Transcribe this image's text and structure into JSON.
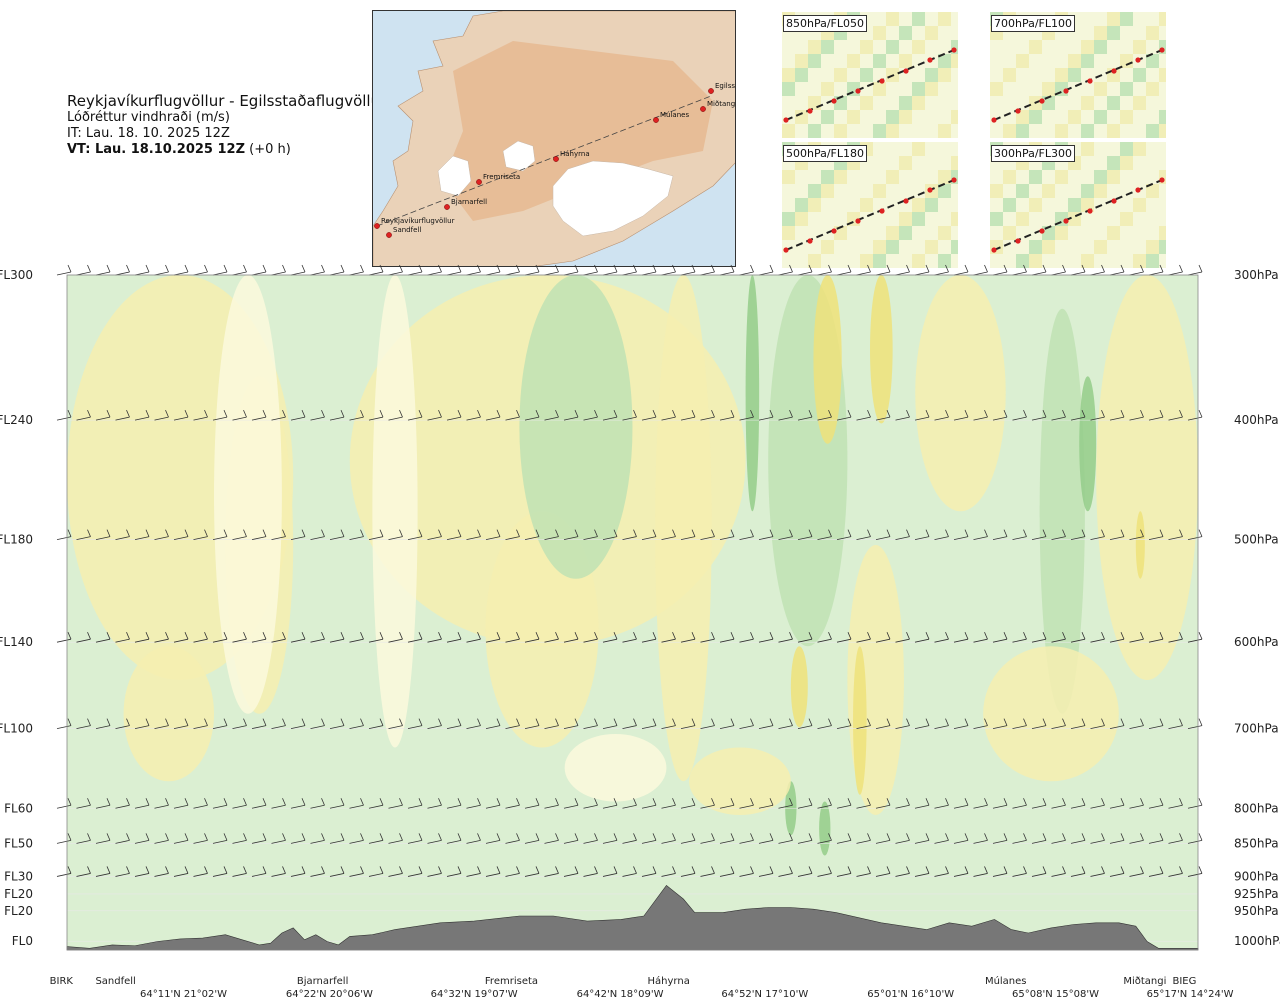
{
  "header": {
    "title": "Reykjavíkurflugvöllur - Egilsstaðaflugvöllur",
    "subtitle": "Lóðréttur vindhraði (m/s)",
    "issue_time": "IT: Lau. 18. 10. 2025 12Z",
    "valid_prefix": "VT: Lau. 18.10.2025 12Z",
    "valid_suffix": "(+0 h)"
  },
  "route_map": {
    "waypoints": [
      "Reykjavíkurflugvöllur",
      "Sandfell",
      "Bjarnarfell",
      "Fremriseta",
      "Háhyrna",
      "Múlanes",
      "Egilsst",
      "Miðtangi"
    ]
  },
  "insets": [
    {
      "label": "850hPa/FL050"
    },
    {
      "label": "700hPa/FL100"
    },
    {
      "label": "500hPa/FL180"
    },
    {
      "label": "300hPa/FL300"
    }
  ],
  "chart_data": {
    "type": "heatmap",
    "title": "Lóðréttur vindhraði (m/s)",
    "x_range": [
      0,
      1
    ],
    "levels": [
      {
        "fl": "FL300",
        "hpa": "300hPa",
        "pos": 0.0
      },
      {
        "fl": "FL240",
        "hpa": "400hPa",
        "pos": 0.215
      },
      {
        "fl": "FL180",
        "hpa": "500hPa",
        "pos": 0.392
      },
      {
        "fl": "FL140",
        "hpa": "600hPa",
        "pos": 0.544
      },
      {
        "fl": "FL100",
        "hpa": "700hPa",
        "pos": 0.672
      },
      {
        "fl": "FL60",
        "hpa": "800hPa",
        "pos": 0.79
      },
      {
        "fl": "FL50",
        "hpa": "850hPa",
        "pos": 0.842
      },
      {
        "fl": "FL30",
        "hpa": "900hPa",
        "pos": 0.891
      },
      {
        "fl": "FL20",
        "hpa": "925hPa",
        "pos": 0.917
      },
      {
        "fl": "FL20",
        "hpa": "950hPa",
        "pos": 0.942
      },
      {
        "fl": "FL0",
        "hpa": "1000hPa",
        "pos": 0.987
      }
    ],
    "places": [
      {
        "name": "BIRK",
        "pos": -0.005
      },
      {
        "name": "Sandfell",
        "pos": 0.043
      },
      {
        "name": "Bjarnarfell",
        "pos": 0.226
      },
      {
        "name": "Fremriseta",
        "pos": 0.393
      },
      {
        "name": "Háhyrna",
        "pos": 0.532
      },
      {
        "name": "Múlanes",
        "pos": 0.83
      },
      {
        "name": "Miðtangi",
        "pos": 0.953
      },
      {
        "name": "BIEG",
        "pos": 0.988
      }
    ],
    "coords": [
      {
        "label": "64°11'N 21°02'W",
        "pos": 0.103
      },
      {
        "label": "64°22'N 20°06'W",
        "pos": 0.232
      },
      {
        "label": "64°32'N 19°07'W",
        "pos": 0.36
      },
      {
        "label": "64°42'N 18°09'W",
        "pos": 0.489
      },
      {
        "label": "64°52'N 17°10'W",
        "pos": 0.617
      },
      {
        "label": "65°01'N 16°10'W",
        "pos": 0.746
      },
      {
        "label": "65°08'N 15°08'W",
        "pos": 0.874
      },
      {
        "label": "65°17'N 14°24'W",
        "pos": 0.993
      }
    ],
    "terrain": [
      [
        0,
        0.02
      ],
      [
        0.02,
        0.01
      ],
      [
        0.04,
        0.03
      ],
      [
        0.06,
        0.025
      ],
      [
        0.08,
        0.05
      ],
      [
        0.1,
        0.065
      ],
      [
        0.12,
        0.07
      ],
      [
        0.14,
        0.09
      ],
      [
        0.155,
        0.06
      ],
      [
        0.17,
        0.03
      ],
      [
        0.18,
        0.04
      ],
      [
        0.19,
        0.1
      ],
      [
        0.2,
        0.13
      ],
      [
        0.21,
        0.06
      ],
      [
        0.22,
        0.09
      ],
      [
        0.23,
        0.05
      ],
      [
        0.24,
        0.03
      ],
      [
        0.25,
        0.08
      ],
      [
        0.27,
        0.09
      ],
      [
        0.29,
        0.12
      ],
      [
        0.31,
        0.14
      ],
      [
        0.33,
        0.16
      ],
      [
        0.36,
        0.17
      ],
      [
        0.4,
        0.2
      ],
      [
        0.43,
        0.2
      ],
      [
        0.46,
        0.17
      ],
      [
        0.49,
        0.18
      ],
      [
        0.51,
        0.2
      ],
      [
        0.53,
        0.38
      ],
      [
        0.545,
        0.3
      ],
      [
        0.555,
        0.22
      ],
      [
        0.58,
        0.22
      ],
      [
        0.6,
        0.24
      ],
      [
        0.62,
        0.25
      ],
      [
        0.64,
        0.25
      ],
      [
        0.66,
        0.24
      ],
      [
        0.68,
        0.22
      ],
      [
        0.7,
        0.19
      ],
      [
        0.72,
        0.16
      ],
      [
        0.74,
        0.14
      ],
      [
        0.76,
        0.12
      ],
      [
        0.78,
        0.16
      ],
      [
        0.8,
        0.14
      ],
      [
        0.82,
        0.18
      ],
      [
        0.835,
        0.12
      ],
      [
        0.85,
        0.1
      ],
      [
        0.87,
        0.13
      ],
      [
        0.89,
        0.15
      ],
      [
        0.91,
        0.16
      ],
      [
        0.93,
        0.16
      ],
      [
        0.945,
        0.14
      ],
      [
        0.955,
        0.05
      ],
      [
        0.965,
        0.01
      ],
      [
        0.98,
        0.01
      ],
      [
        1,
        0.01
      ]
    ],
    "legend": "none"
  },
  "colors": {
    "yellow_light": "#f6eeb0",
    "yellow": "#eee27a",
    "yellow_strong": "#e4d838",
    "green_light": "#dbefd2",
    "green": "#bfe2b4",
    "green_mid": "#94cc8a",
    "green_dark": "#5aa45a",
    "cream": "#fbf9dd",
    "terrain": "#777777"
  }
}
